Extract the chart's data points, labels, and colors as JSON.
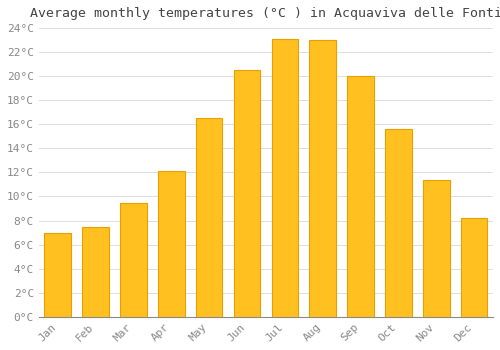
{
  "months": [
    "Jan",
    "Feb",
    "Mar",
    "Apr",
    "May",
    "Jun",
    "Jul",
    "Aug",
    "Sep",
    "Oct",
    "Nov",
    "Dec"
  ],
  "values": [
    7.0,
    7.5,
    9.5,
    12.1,
    16.5,
    20.5,
    23.1,
    23.0,
    20.0,
    15.6,
    11.4,
    8.2
  ],
  "bar_color": "#FFC020",
  "bar_edge_color": "#E8A000",
  "title": "Average monthly temperatures (°C ) in Acquaviva delle Fonti",
  "ylim": [
    0,
    24
  ],
  "ytick_max": 24,
  "ytick_step": 2,
  "background_color": "#FFFFFF",
  "grid_color": "#DDDDDD",
  "title_fontsize": 9.5,
  "tick_fontsize": 8,
  "font_family": "monospace"
}
